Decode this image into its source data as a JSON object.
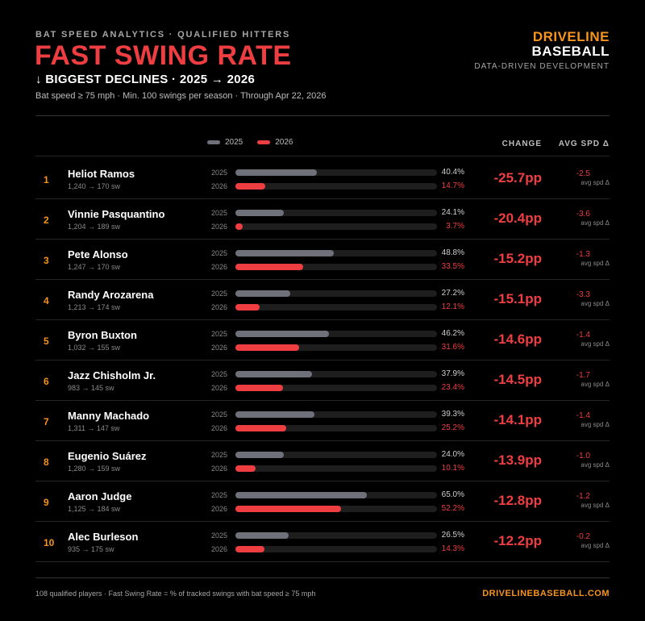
{
  "header": {
    "kicker": "BAT SPEED ANALYTICS · QUALIFIED HITTERS",
    "title": "FAST SWING RATE",
    "subtitle": "↓ BIGGEST DECLINES · 2025 → 2026",
    "meta": "Bat speed ≥ 75 mph · Min. 100 swings per season · Through Apr 22, 2026"
  },
  "brand": {
    "line1": "DRIVELINE",
    "line2": "BASEBALL",
    "tagline": "DATA-DRIVEN DEVELOPMENT"
  },
  "legend": [
    {
      "label": "2025",
      "color": "#6e7179"
    },
    {
      "label": "2026",
      "color": "#ef3e42"
    }
  ],
  "columns": {
    "change": "CHANGE",
    "avg_spd": "AVG SPD Δ"
  },
  "row_labels": {
    "year_a": "2025",
    "year_b": "2026",
    "avg_note": "avg spd Δ"
  },
  "chart_data": {
    "type": "bar",
    "xlim": [
      0,
      100
    ],
    "series": [
      {
        "name": "2025",
        "color": "#6e7179"
      },
      {
        "name": "2026",
        "color": "#ef3e42"
      }
    ],
    "rows": [
      {
        "rank": "1",
        "name": "Heliot Ramos",
        "swings": "1,240 → 170 sw",
        "v2025": 40.4,
        "v2026": 14.7,
        "label2025": "40.4%",
        "label2026": "14.7%",
        "change": "-25.7pp",
        "avg_spd": "-2.5"
      },
      {
        "rank": "2",
        "name": "Vinnie Pasquantino",
        "swings": "1,204 → 189 sw",
        "v2025": 24.1,
        "v2026": 3.7,
        "label2025": "24.1%",
        "label2026": "3.7%",
        "change": "-20.4pp",
        "avg_spd": "-3.6"
      },
      {
        "rank": "3",
        "name": "Pete Alonso",
        "swings": "1,247 → 170 sw",
        "v2025": 48.8,
        "v2026": 33.5,
        "label2025": "48.8%",
        "label2026": "33.5%",
        "change": "-15.2pp",
        "avg_spd": "-1.3"
      },
      {
        "rank": "4",
        "name": "Randy Arozarena",
        "swings": "1,213 → 174 sw",
        "v2025": 27.2,
        "v2026": 12.1,
        "label2025": "27.2%",
        "label2026": "12.1%",
        "change": "-15.1pp",
        "avg_spd": "-3.3"
      },
      {
        "rank": "5",
        "name": "Byron Buxton",
        "swings": "1,032 → 155 sw",
        "v2025": 46.2,
        "v2026": 31.6,
        "label2025": "46.2%",
        "label2026": "31.6%",
        "change": "-14.6pp",
        "avg_spd": "-1.4"
      },
      {
        "rank": "6",
        "name": "Jazz Chisholm Jr.",
        "swings": "983 → 145 sw",
        "v2025": 37.9,
        "v2026": 23.4,
        "label2025": "37.9%",
        "label2026": "23.4%",
        "change": "-14.5pp",
        "avg_spd": "-1.7"
      },
      {
        "rank": "7",
        "name": "Manny Machado",
        "swings": "1,311 → 147 sw",
        "v2025": 39.3,
        "v2026": 25.2,
        "label2025": "39.3%",
        "label2026": "25.2%",
        "change": "-14.1pp",
        "avg_spd": "-1.4"
      },
      {
        "rank": "8",
        "name": "Eugenio Suárez",
        "swings": "1,280 → 159 sw",
        "v2025": 24.0,
        "v2026": 10.1,
        "label2025": "24.0%",
        "label2026": "10.1%",
        "change": "-13.9pp",
        "avg_spd": "-1.0"
      },
      {
        "rank": "9",
        "name": "Aaron Judge",
        "swings": "1,125 → 184 sw",
        "v2025": 65.0,
        "v2026": 52.2,
        "label2025": "65.0%",
        "label2026": "52.2%",
        "change": "-12.8pp",
        "avg_spd": "-1.2"
      },
      {
        "rank": "10",
        "name": "Alec Burleson",
        "swings": "935 → 175 sw",
        "v2025": 26.5,
        "v2026": 14.3,
        "label2025": "26.5%",
        "label2026": "14.3%",
        "change": "-12.2pp",
        "avg_spd": "-0.2"
      }
    ]
  },
  "footer": {
    "note": "108 qualified players · Fast Swing Rate = % of tracked swings with bat speed ≥ 75 mph",
    "url": "DRIVELINEBASEBALL.COM"
  }
}
